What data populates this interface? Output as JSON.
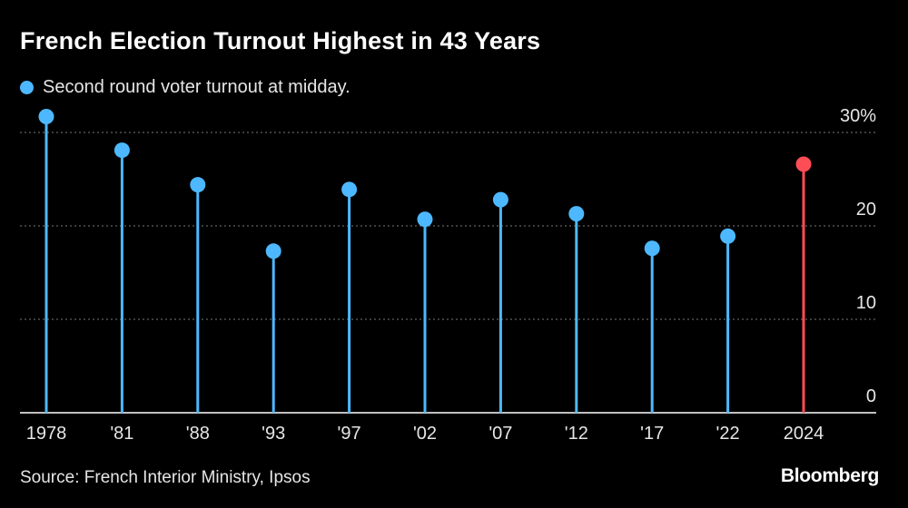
{
  "colors": {
    "background": "#000000",
    "series": "#4db8ff",
    "highlight": "#ff4d55",
    "grid": "#7a7a7a",
    "axis": "#ffffff",
    "text": "#e6e6e6"
  },
  "legend": {
    "label": "Second round voter turnout at midday."
  },
  "source": "Source: French Interior Ministry, Ipsos",
  "brand": "Bloomberg",
  "chart_data": {
    "type": "lollipop",
    "title": "French Election Turnout Highest in 43 Years",
    "series_name": "Second round voter turnout at midday.",
    "categories": [
      "1978",
      "'81",
      "'88",
      "'93",
      "'97",
      "'02",
      "'07",
      "'12",
      "'17",
      "'22",
      "2024"
    ],
    "values": [
      31.7,
      28.1,
      24.4,
      17.3,
      23.9,
      20.7,
      22.8,
      21.3,
      17.6,
      18.9,
      26.6
    ],
    "highlight_index": 10,
    "ylim": [
      0,
      30
    ],
    "yticks": [
      0,
      10,
      20,
      30
    ],
    "ytick_labels": [
      "0",
      "10",
      "20",
      "30%"
    ],
    "grid": true,
    "yaxis_position": "right",
    "xlabel": "",
    "ylabel": ""
  }
}
